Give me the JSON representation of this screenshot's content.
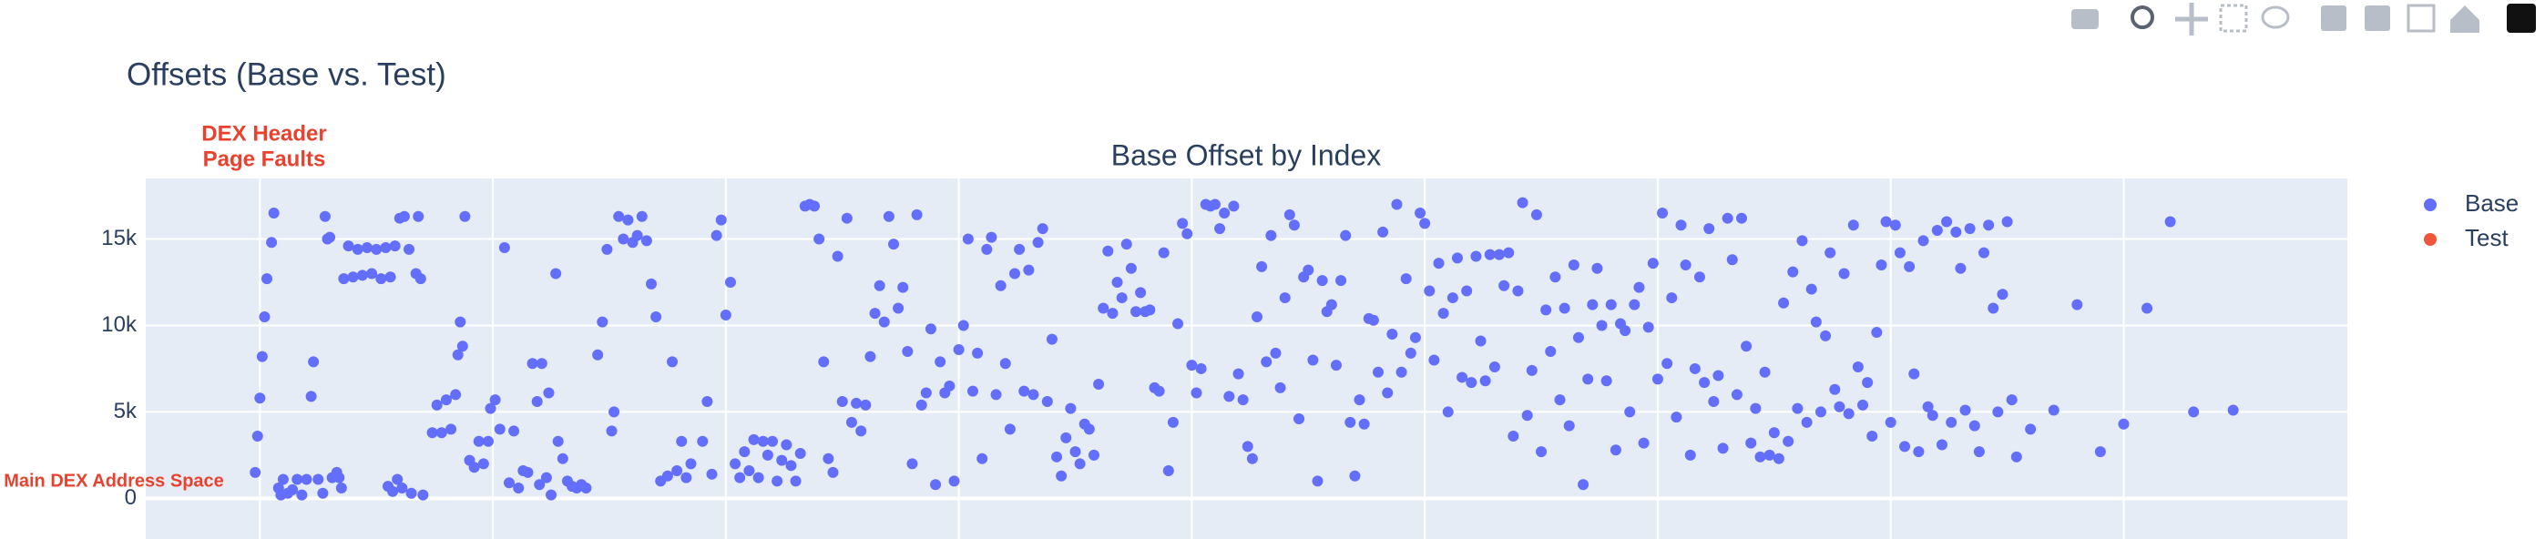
{
  "chart_data": {
    "type": "scatter",
    "title": "Offsets (Base vs. Test)",
    "subtitle": "Base Offset by Index",
    "annotations": [
      {
        "lines": [
          "DEX Header",
          "Page Faults"
        ],
        "color": "#e8422f"
      },
      {
        "lines": [
          "Main DEX Address Space"
        ],
        "color": "#e8422f"
      }
    ],
    "xlim": [
      -49,
      896
    ],
    "xticks": [
      0,
      100,
      200,
      300,
      400,
      500,
      600,
      700,
      800
    ],
    "ylim": [
      -1400,
      18500
    ],
    "yticks": [
      0,
      {
        "value": 5000,
        "label": "5k"
      },
      {
        "value": 10000,
        "label": "10k"
      },
      {
        "value": 15000,
        "label": "15k"
      }
    ],
    "grid": true,
    "legend": "right",
    "series": [
      {
        "name": "Base",
        "color": "#636efa",
        "x": [
          -2,
          -1,
          0,
          1,
          2,
          3,
          5,
          6,
          8,
          9,
          10,
          12,
          14,
          16,
          18,
          20,
          22,
          23,
          25,
          27,
          28,
          29,
          30,
          31,
          33,
          34,
          35,
          36,
          38,
          40,
          42,
          44,
          46,
          48,
          50,
          52,
          54,
          56,
          58,
          60,
          62,
          55,
          57,
          59,
          61,
          64,
          65,
          67,
          68,
          69,
          70,
          74,
          76,
          78,
          80,
          82,
          84,
          85,
          86,
          87,
          88,
          90,
          92,
          94,
          96,
          98,
          99,
          101,
          103,
          105,
          107,
          109,
          111,
          113,
          115,
          117,
          119,
          120,
          121,
          123,
          124,
          125,
          127,
          128,
          130,
          132,
          134,
          136,
          138,
          140,
          145,
          147,
          149,
          151,
          152,
          154,
          156,
          158,
          160,
          162,
          164,
          166,
          168,
          170,
          172,
          175,
          177,
          179,
          181,
          183,
          185,
          190,
          192,
          194,
          196,
          198,
          200,
          202,
          204,
          206,
          208,
          210,
          212,
          214,
          216,
          218,
          220,
          222,
          224,
          226,
          228,
          230,
          232,
          234,
          236,
          238,
          240,
          242,
          244,
          246,
          248,
          250,
          252,
          254,
          256,
          258,
          260,
          262,
          264,
          266,
          268,
          270,
          272,
          274,
          276,
          278,
          280,
          282,
          284,
          286,
          288,
          290,
          292,
          294,
          296,
          298,
          300,
          302,
          304,
          306,
          308,
          310,
          312,
          314,
          316,
          318,
          320,
          322,
          324,
          326,
          328,
          330,
          332,
          334,
          336,
          338,
          340,
          342,
          344,
          346,
          348,
          350,
          352,
          354,
          356,
          358,
          360,
          362,
          364,
          366,
          368,
          370,
          372,
          374,
          376,
          378,
          380,
          382,
          384,
          386,
          388,
          390,
          392,
          394,
          396,
          398,
          400,
          402,
          404,
          406,
          408,
          410,
          412,
          414,
          416,
          418,
          420,
          422,
          424,
          426,
          428,
          430,
          432,
          434,
          436,
          438,
          440,
          442,
          444,
          446,
          448,
          450,
          452,
          454,
          456,
          458,
          460,
          462,
          464,
          466,
          468,
          470,
          472,
          474,
          476,
          478,
          480,
          482,
          484,
          486,
          488,
          490,
          492,
          494,
          496,
          498,
          500,
          502,
          504,
          506,
          508,
          510,
          512,
          514,
          516,
          518,
          520,
          522,
          524,
          526,
          528,
          530,
          532,
          534,
          536,
          538,
          540,
          542,
          544,
          546,
          548,
          550,
          552,
          554,
          556,
          558,
          560,
          562,
          564,
          566,
          568,
          570,
          572,
          574,
          576,
          578,
          580,
          582,
          584,
          586,
          588,
          590,
          592,
          594,
          596,
          598,
          600,
          602,
          604,
          606,
          608,
          610,
          612,
          614,
          616,
          618,
          620,
          622,
          624,
          626,
          628,
          630,
          632,
          634,
          636,
          638,
          640,
          642,
          644,
          646,
          648,
          650,
          652,
          654,
          656,
          658,
          660,
          662,
          664,
          666,
          668,
          670,
          672,
          674,
          676,
          678,
          680,
          682,
          684,
          686,
          688,
          690,
          692,
          694,
          696,
          698,
          700,
          702,
          704,
          706,
          708,
          710,
          712,
          714,
          716,
          718,
          720,
          722,
          724,
          726,
          728,
          730,
          732,
          734,
          736,
          738,
          740,
          742,
          744,
          746,
          748,
          750,
          752,
          754,
          760,
          770,
          780,
          790,
          800,
          810,
          820,
          830,
          847
        ],
        "values": [
          1500,
          3600,
          5800,
          8200,
          10500,
          12700,
          14800,
          16500,
          600,
          200,
          1100,
          300,
          500,
          1100,
          200,
          1100,
          5900,
          7900,
          1100,
          300,
          16300,
          15000,
          15100,
          1200,
          1500,
          1200,
          600,
          12700,
          14600,
          12800,
          14400,
          12900,
          14500,
          13000,
          14400,
          12700,
          14500,
          12800,
          14600,
          16200,
          16300,
          700,
          400,
          1100,
          600,
          14400,
          300,
          13000,
          16300,
          12700,
          200,
          3800,
          5400,
          3800,
          5700,
          4000,
          6000,
          8300,
          10200,
          8800,
          16300,
          2200,
          1800,
          3300,
          2000,
          3300,
          5200,
          5700,
          4000,
          14500,
          900,
          3900,
          600,
          1600,
          1500,
          7800,
          5600,
          800,
          7800,
          1200,
          6100,
          200,
          13000,
          3300,
          2300,
          1000,
          700,
          600,
          800,
          600,
          8300,
          10200,
          14400,
          3900,
          5000,
          16300,
          15000,
          16100,
          14800,
          15200,
          16300,
          14900,
          12400,
          10500,
          1000,
          1300,
          7900,
          1600,
          3300,
          1200,
          2000,
          3300,
          5600,
          1400,
          15200,
          16100,
          10600,
          12500,
          2000,
          1200,
          2700,
          1600,
          3400,
          1200,
          3300,
          2500,
          3300,
          1000,
          2200,
          3100,
          1900,
          1000,
          2600,
          16900,
          17000,
          16900,
          15000,
          7900,
          2300,
          1500,
          14000,
          5600,
          16200,
          4400,
          5500,
          3900,
          5400,
          8200,
          10700,
          12300,
          10200,
          16300,
          14700,
          11000,
          12200,
          8500,
          2000,
          16400,
          5400,
          6100,
          9800,
          800,
          7900,
          6100,
          6500,
          1000,
          8600,
          10000,
          15000,
          6200,
          8400,
          2300,
          14400,
          15100,
          6000,
          12300,
          7800,
          4000,
          13000,
          14400,
          6200,
          13200,
          6000,
          14800,
          15600,
          5600,
          9200,
          2400,
          1300,
          3500,
          5200,
          2700,
          2000,
          4300,
          4000,
          2500,
          6600,
          11000,
          14300,
          10700,
          12500,
          11600,
          14700,
          13300,
          10800,
          11900,
          10800,
          10900,
          6400,
          6200,
          14200,
          1600,
          4400,
          10100,
          15900,
          15300,
          7700,
          6100,
          7500,
          17000,
          16900,
          17000,
          15600,
          16500,
          5900,
          16900,
          7200,
          5700,
          3000,
          2300,
          10500,
          13400,
          7900,
          15200,
          8400,
          6400,
          11600,
          16400,
          15800,
          4600,
          12800,
          13200,
          8000,
          1000,
          12600,
          10800,
          11200,
          7700,
          12600,
          15200,
          4400,
          1300,
          5700,
          4300,
          10400,
          10300,
          7300,
          15400,
          6100,
          9500,
          17000,
          7300,
          12700,
          8400,
          9300,
          16500,
          15900,
          12000,
          8000,
          13600,
          10700,
          5000,
          11600,
          13900,
          7000,
          12000,
          6700,
          14000,
          9100,
          6800,
          14100,
          7600,
          14100,
          12300,
          14200,
          3600,
          12000,
          17100,
          4800,
          7400,
          16400,
          2700,
          10900,
          8500,
          12800,
          5700,
          11000,
          4200,
          13500,
          9300,
          800,
          6900,
          11200,
          13300,
          10000,
          6800,
          11200,
          2800,
          10100,
          9700,
          5000,
          11200,
          12200,
          3200,
          9900,
          13600,
          6900,
          16500,
          7800,
          11600,
          4700,
          15800,
          13500,
          2500,
          7500,
          12800,
          6700,
          15600,
          5600,
          7100,
          2900,
          16200,
          13800,
          6000,
          16200,
          8800,
          3200,
          5200,
          2400,
          7300,
          2500,
          3800,
          2300,
          11300,
          3300,
          13100,
          5200,
          14900,
          4400,
          12100,
          10200,
          5000,
          9400,
          14200,
          6300,
          5300,
          13000,
          4900,
          15800,
          7600,
          5400,
          6700,
          3600,
          9600,
          13500,
          16000,
          4400,
          15800,
          14200,
          3000,
          13400,
          7200,
          2700,
          14900,
          5300,
          4800,
          15500,
          3100,
          16000,
          4400,
          15400,
          13300,
          5100,
          15600,
          4200,
          2700,
          14200,
          15800,
          11000,
          5000,
          11800,
          16000,
          5700,
          2400,
          4000,
          5100,
          11200,
          2700,
          4300,
          11000,
          16000,
          5000,
          5100
        ]
      },
      {
        "name": "Test",
        "color": "#ef553b",
        "x": [],
        "values": []
      }
    ]
  }
}
